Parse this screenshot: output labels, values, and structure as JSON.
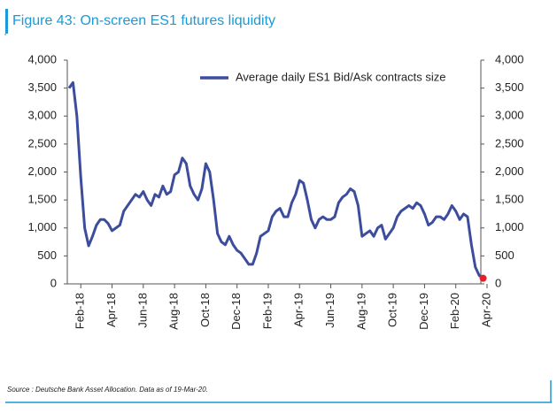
{
  "chart_data": {
    "type": "line",
    "title": "Figure 43: On-screen ES1 futures liquidity",
    "source": "Source : Deutsche Bank Asset Allocation. Data as of 19-Mar-20.",
    "categories": [
      null,
      null,
      null,
      "Feb-18",
      null,
      null,
      null,
      null,
      null,
      null,
      null,
      "Apr-18",
      null,
      null,
      null,
      null,
      null,
      null,
      null,
      "Jun-18",
      null,
      null,
      null,
      null,
      null,
      null,
      null,
      "Aug-18",
      null,
      null,
      null,
      null,
      null,
      null,
      null,
      "Oct-18",
      null,
      null,
      null,
      null,
      null,
      null,
      null,
      "Dec-18",
      null,
      null,
      null,
      null,
      null,
      null,
      null,
      "Feb-19",
      null,
      null,
      null,
      null,
      null,
      null,
      null,
      "Apr-19",
      null,
      null,
      null,
      null,
      null,
      null,
      null,
      "Jun-19",
      null,
      null,
      null,
      null,
      null,
      null,
      null,
      "Aug-19",
      null,
      null,
      null,
      null,
      null,
      null,
      null,
      "Oct-19",
      null,
      null,
      null,
      null,
      null,
      null,
      null,
      "Dec-19",
      null,
      null,
      null,
      null,
      null,
      null,
      null,
      "Feb-20",
      null,
      null,
      null,
      null,
      null,
      null,
      null,
      "Apr-20"
    ],
    "series": [
      {
        "name": "Average daily ES1 Bid/Ask contracts size",
        "color": "#3d4d9e",
        "marker_color": "#e0202a",
        "values": [
          3500,
          3600,
          3000,
          1900,
          1000,
          680,
          850,
          1050,
          1150,
          1150,
          1080,
          950,
          1000,
          1050,
          1300,
          1400,
          1500,
          1600,
          1550,
          1650,
          1500,
          1400,
          1600,
          1550,
          1750,
          1600,
          1650,
          1950,
          2000,
          2250,
          2150,
          1750,
          1600,
          1500,
          1700,
          2150,
          2000,
          1500,
          900,
          750,
          700,
          850,
          700,
          600,
          550,
          450,
          350,
          350,
          550,
          850,
          900,
          950,
          1200,
          1300,
          1350,
          1200,
          1200,
          1450,
          1600,
          1850,
          1800,
          1500,
          1150,
          1000,
          1150,
          1200,
          1150,
          1150,
          1200,
          1450,
          1550,
          1600,
          1700,
          1650,
          1400,
          850,
          900,
          950,
          850,
          1000,
          1050,
          800,
          900,
          1000,
          1200,
          1300,
          1350,
          1400,
          1350,
          1450,
          1400,
          1250,
          1050,
          1100,
          1200,
          1200,
          1150,
          1250,
          1400,
          1300,
          1150,
          1250,
          1200,
          700,
          300,
          150,
          100,
          null
        ]
      }
    ],
    "ylim": [
      0,
      4000
    ],
    "yticks": [
      0,
      500,
      {
        "value": 1000,
        "label": "1,000"
      },
      {
        "value": 1500,
        "label": "1,500"
      },
      {
        "value": 2000,
        "label": "2,000"
      },
      {
        "value": 2500,
        "label": "2,500"
      },
      {
        "value": 3000,
        "label": "3,000"
      },
      {
        "value": 3500,
        "label": "3,500"
      },
      {
        "value": 4000,
        "label": "4,000"
      }
    ],
    "y2lim": [
      0,
      4000
    ],
    "y2ticks": [
      0,
      500,
      {
        "value": 1000,
        "label": "1,000"
      },
      {
        "value": 1500,
        "label": "1,500"
      },
      {
        "value": 2000,
        "label": "2,000"
      },
      {
        "value": 2500,
        "label": "2,500"
      },
      {
        "value": 3000,
        "label": "3,000"
      },
      {
        "value": 3500,
        "label": "3,500"
      },
      {
        "value": 4000,
        "label": "4,000"
      }
    ],
    "legend": "upper right",
    "grid": false
  }
}
